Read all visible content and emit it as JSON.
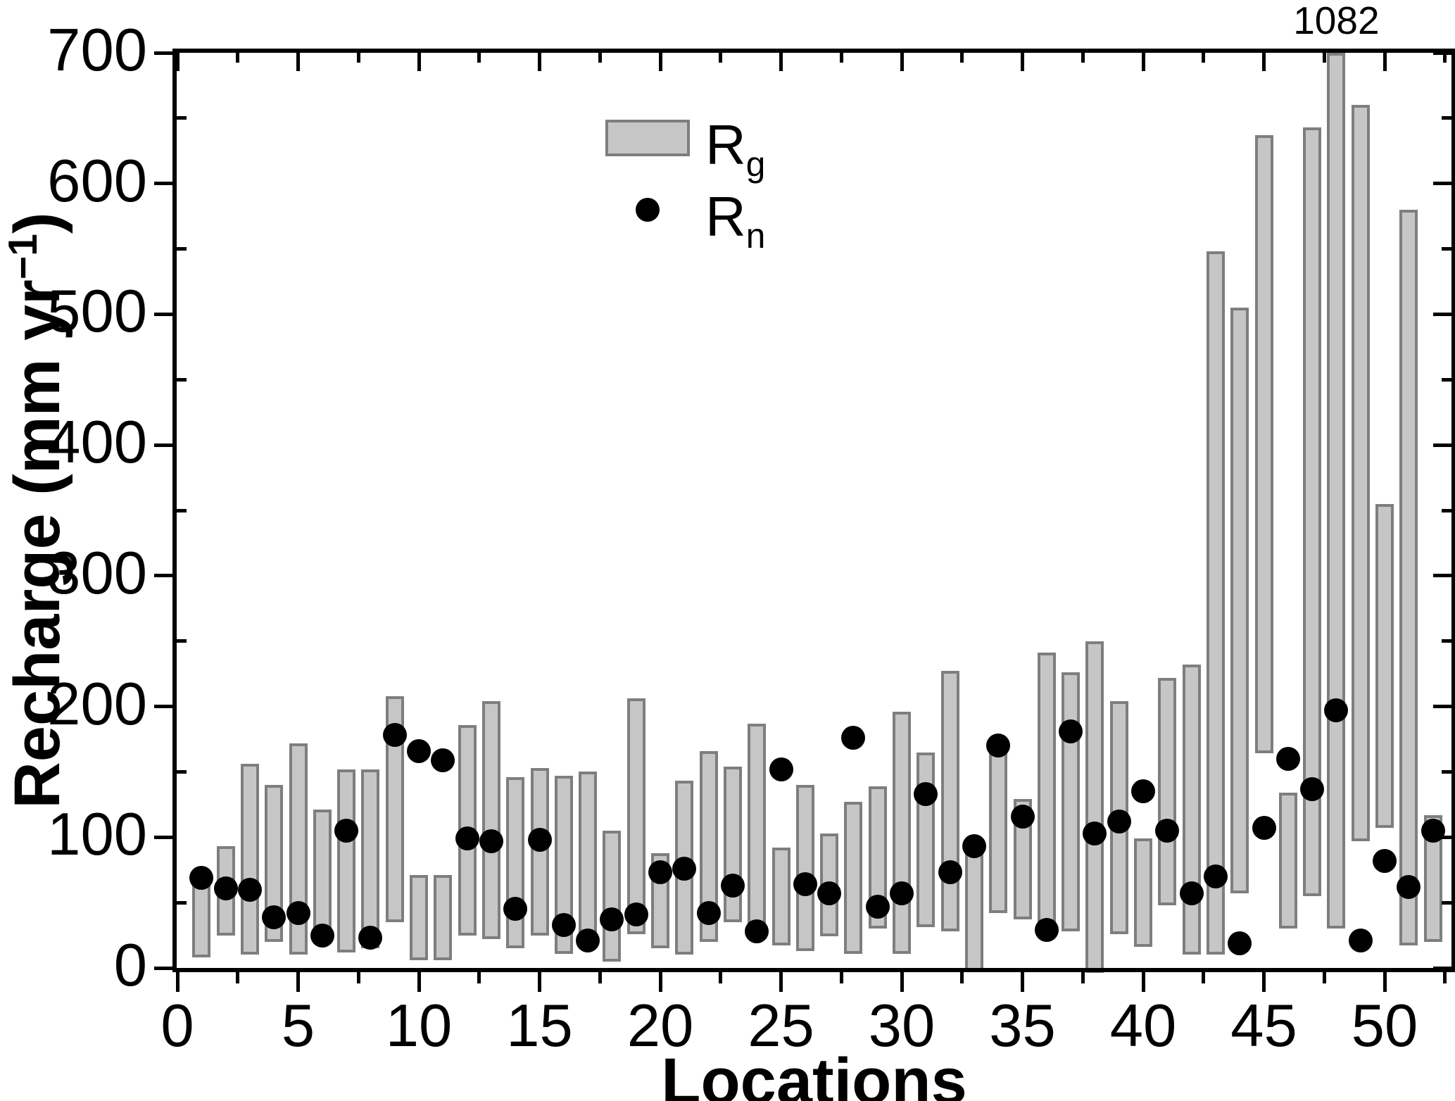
{
  "figure": {
    "background": "#ffffff",
    "x_axis_title": "Locations",
    "y_axis_title_main": "Recharge (mm yr",
    "y_axis_title_sup": "−1",
    "y_axis_title_end": ")",
    "annotation_1082": "1082",
    "legend": {
      "rg_main": "R",
      "rg_sub": "g",
      "rn_main": "R",
      "rn_sub": "n"
    }
  },
  "chart_data": {
    "type": "bar",
    "subtype": "range-bars-with-scatter-overlay",
    "title": "",
    "xlabel": "Locations",
    "ylabel": "Recharge (mm yr-1)",
    "xlim": [
      0,
      52.8
    ],
    "ylim": [
      0,
      700
    ],
    "x_major_ticks": [
      0,
      5,
      10,
      15,
      20,
      25,
      30,
      35,
      40,
      45,
      50
    ],
    "x_minor_tick_step": 2.5,
    "y_major_ticks": [
      0,
      100,
      200,
      300,
      400,
      500,
      600,
      700
    ],
    "y_minor_tick_step": 50,
    "grid": false,
    "legend_position": "upper-center-inside",
    "locations": [
      1,
      2,
      3,
      4,
      5,
      6,
      7,
      8,
      9,
      10,
      11,
      12,
      13,
      14,
      15,
      16,
      17,
      18,
      19,
      20,
      21,
      22,
      23,
      24,
      25,
      26,
      27,
      28,
      29,
      30,
      31,
      32,
      33,
      34,
      35,
      36,
      37,
      38,
      39,
      40,
      41,
      42,
      43,
      44,
      45,
      46,
      47,
      48,
      49,
      50,
      51,
      52
    ],
    "series": [
      {
        "name": "Rg",
        "type": "range-bar",
        "low": [
          8,
          25,
          10,
          20,
          10,
          22,
          12,
          15,
          35,
          6,
          6,
          25,
          22,
          15,
          25,
          11,
          20,
          5,
          26,
          15,
          10,
          20,
          35,
          24,
          17,
          13,
          24,
          11,
          30,
          11,
          31,
          28,
          -3,
          42,
          37,
          30,
          28,
          -4,
          26,
          16,
          48,
          10,
          10,
          57,
          164,
          30,
          55,
          30,
          97,
          107,
          17,
          20
        ],
        "high": [
          73,
          93,
          156,
          140,
          172,
          121,
          152,
          152,
          208,
          71,
          71,
          186,
          204,
          146,
          153,
          147,
          150,
          105,
          206,
          88,
          143,
          166,
          154,
          187,
          92,
          140,
          103,
          127,
          139,
          196,
          165,
          227,
          88,
          172,
          129,
          241,
          226,
          250,
          204,
          99,
          222,
          232,
          548,
          505,
          637,
          134,
          643,
          1082,
          660,
          355,
          580,
          117
        ]
      },
      {
        "name": "Rn",
        "type": "scatter",
        "values": [
          69,
          61,
          60,
          39,
          42,
          25,
          105,
          23,
          178,
          166,
          159,
          99,
          97,
          45,
          98,
          33,
          21,
          37,
          41,
          73,
          76,
          42,
          63,
          28,
          152,
          64,
          57,
          176,
          47,
          57,
          133,
          73,
          93,
          170,
          116,
          29,
          181,
          103,
          112,
          135,
          105,
          57,
          70,
          19,
          107,
          160,
          137,
          197,
          21,
          82,
          62,
          105
        ]
      }
    ],
    "annotations": [
      {
        "text": "1082",
        "location": 48,
        "meaning": "true top of clipped bar at location 48"
      }
    ],
    "colors": {
      "bar_fill": "#c6c6c6",
      "bar_border": "#7e7e7e",
      "dot": "#000000",
      "axis": "#000000",
      "text": "#000000"
    }
  }
}
